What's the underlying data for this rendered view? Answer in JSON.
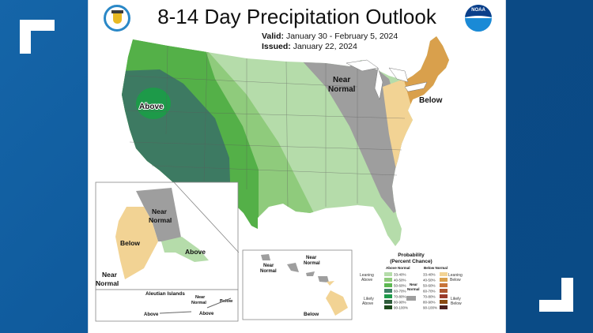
{
  "header": {
    "title": "8-14 Day Precipitation Outlook",
    "valid_label": "Valid:",
    "valid_value": "January 30 - February 5, 2024",
    "issued_label": "Issued:",
    "issued_value": "January 22, 2024",
    "logo_left": "department-of-commerce-seal",
    "logo_right": "noaa-logo",
    "noaa_text": "NOAA"
  },
  "map_labels": {
    "conus_above": "Above",
    "conus_near": "Near",
    "conus_normal": "Normal",
    "conus_below": "Below",
    "alaska_near": "Near",
    "alaska_normal": "Normal",
    "alaska_below": "Below",
    "alaska_above": "Above",
    "alaska_sw_near": "Near",
    "alaska_sw_normal": "Normal",
    "aleutian_title": "Aleutian Islands",
    "aleutian_near": "Near",
    "aleutian_normal": "Normal",
    "aleutian_below": "Below",
    "aleutian_above_1": "Above",
    "aleutian_above_2": "Above",
    "hawaii_near_1": "Near",
    "hawaii_normal_1": "Normal",
    "hawaii_near_2": "Near",
    "hawaii_normal_2": "Normal",
    "hawaii_below": "Below"
  },
  "legend": {
    "title_1": "Probability",
    "title_2": "(Percent Chance)",
    "above_header": "Above Normal",
    "below_header": "Below Normal",
    "near_label_1": "Near",
    "near_label_2": "Normal",
    "near_color": "#9e9e9e",
    "leaning_above_1": "Leaning",
    "leaning_above_2": "Above",
    "likely_above_1": "Likely",
    "likely_above_2": "Above",
    "leaning_below_1": "Leaning",
    "leaning_below_2": "Below",
    "likely_below_1": "Likely",
    "likely_below_2": "Below",
    "above": [
      {
        "range": "33-40%",
        "color": "#b5dcaa"
      },
      {
        "range": "40-50%",
        "color": "#8fcb7c"
      },
      {
        "range": "50-60%",
        "color": "#5db851"
      },
      {
        "range": "60-70%",
        "color": "#3d8064"
      },
      {
        "range": "70-80%",
        "color": "#1d9a49"
      },
      {
        "range": "80-90%",
        "color": "#2e5c3a"
      },
      {
        "range": "90-100%",
        "color": "#1d4a1c"
      }
    ],
    "below": [
      {
        "range": "33-40%",
        "color": "#f2d394"
      },
      {
        "range": "40-50%",
        "color": "#d9a04c"
      },
      {
        "range": "50-60%",
        "color": "#c8753a"
      },
      {
        "range": "60-70%",
        "color": "#ad5631"
      },
      {
        "range": "70-80%",
        "color": "#9a3b2b"
      },
      {
        "range": "80-90%",
        "color": "#8a4a12"
      },
      {
        "range": "90-100%",
        "color": "#4d2220"
      }
    ]
  },
  "colors": {
    "frame_blue": "#0f5a9c",
    "above_70_80": "#1d9a49",
    "above_60_70": "#3d7a62",
    "above_50_60": "#54b048",
    "above_40_50": "#8fcb7c",
    "above_33_40": "#b5dcaa",
    "near_normal": "#9e9e9e",
    "below_33_40": "#f2d394",
    "below_40_50": "#d9a04c"
  }
}
